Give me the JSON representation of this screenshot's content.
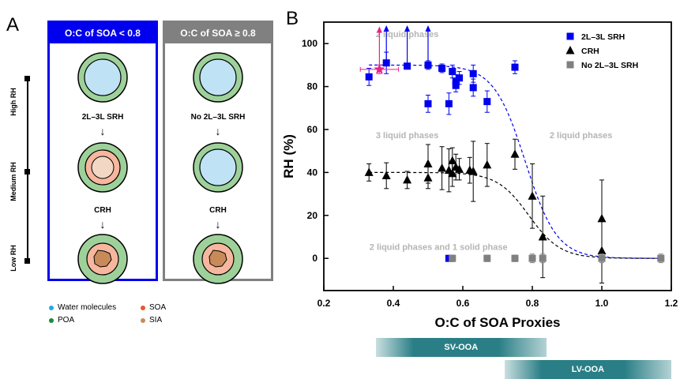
{
  "panel_a": {
    "letter": "A",
    "left_header": "O:C of SOA < 0.8",
    "right_header": "O:C of SOA ≥ 0.8",
    "left_label_1": "2L–3L SRH",
    "left_label_2": "CRH",
    "right_label_1": "No 2L–3L SRH",
    "right_label_2": "CRH",
    "rh_axis": [
      "High RH",
      "Medium RH",
      "Low RH"
    ],
    "legend": [
      {
        "label": "Water molecules",
        "color": "#29a8e0"
      },
      {
        "label": "SOA",
        "color": "#e8582a"
      },
      {
        "label": "POA",
        "color": "#1a8a3a"
      },
      {
        "label": "SIA",
        "color": "#c98a5a"
      }
    ],
    "colors": {
      "left_box": "#0000ee",
      "right_box": "#808080"
    }
  },
  "panel_b": {
    "letter": "B"
  },
  "chart_data": {
    "type": "scatter",
    "xlabel": "O:C of SOA Proxies",
    "ylabel": "RH (%)",
    "xlim": [
      0.2,
      1.2
    ],
    "ylim": [
      -15,
      110
    ],
    "xticks": [
      0.2,
      0.4,
      0.6,
      0.8,
      1.0,
      1.2
    ],
    "xtick_labels": [
      "0.2",
      "0.4",
      "0.6",
      "0.8",
      "1.0",
      "1.2"
    ],
    "yticks": [
      0,
      20,
      40,
      60,
      80,
      100
    ],
    "ytick_labels": [
      "0",
      "20",
      "40",
      "60",
      "80",
      "100"
    ],
    "legend_position": "top-right",
    "annotations": [
      {
        "text": "2 liquid phases",
        "x": 0.44,
        "y": 103
      },
      {
        "text": "3 liquid phases",
        "x": 0.44,
        "y": 56
      },
      {
        "text": "2 liquid phases",
        "x": 0.94,
        "y": 56
      },
      {
        "text": "2 liquid phases and 1 solid phase",
        "x": 0.53,
        "y": 4
      }
    ],
    "series": [
      {
        "name": "2L–3L SRH",
        "color": "#0000ee",
        "marker": "square",
        "points": [
          {
            "x": 0.33,
            "y": 84.5,
            "err": 4
          },
          {
            "x": 0.38,
            "y": 91,
            "err": 5
          },
          {
            "x": 0.44,
            "y": 89.5,
            "err": 1
          },
          {
            "x": 0.5,
            "y": 90,
            "err": 2
          },
          {
            "x": 0.5,
            "y": 72,
            "err": 4
          },
          {
            "x": 0.54,
            "y": 88.5,
            "err": 2
          },
          {
            "x": 0.56,
            "y": 72,
            "err": 5
          },
          {
            "x": 0.57,
            "y": 87,
            "err": 3
          },
          {
            "x": 0.58,
            "y": 80.5,
            "err": 3
          },
          {
            "x": 0.58,
            "y": 82.5,
            "err": 3
          },
          {
            "x": 0.59,
            "y": 84,
            "err": 3
          },
          {
            "x": 0.63,
            "y": 86,
            "err": 4
          },
          {
            "x": 0.63,
            "y": 79.5,
            "err": 4
          },
          {
            "x": 0.67,
            "y": 73,
            "err": 5
          },
          {
            "x": 0.75,
            "y": 89,
            "err": 3
          },
          {
            "x": 0.56,
            "y": 0,
            "err": 1
          }
        ],
        "lower_limits": [
          {
            "x": 0.38,
            "y": 91
          },
          {
            "x": 0.44,
            "y": 89.5
          },
          {
            "x": 0.5,
            "y": 90
          }
        ]
      },
      {
        "name": "CRH",
        "color": "#000000",
        "marker": "triangle",
        "points": [
          {
            "x": 0.33,
            "y": 40,
            "err": 4
          },
          {
            "x": 0.38,
            "y": 38.5,
            "err": 6
          },
          {
            "x": 0.44,
            "y": 36.5,
            "err": 4
          },
          {
            "x": 0.5,
            "y": 44,
            "err": 9
          },
          {
            "x": 0.5,
            "y": 37.5,
            "err": 5
          },
          {
            "x": 0.54,
            "y": 42,
            "err": 10
          },
          {
            "x": 0.56,
            "y": 41,
            "err": 10
          },
          {
            "x": 0.57,
            "y": 45.5,
            "err": 6
          },
          {
            "x": 0.57,
            "y": 39.5,
            "err": 6
          },
          {
            "x": 0.58,
            "y": 42.5,
            "err": 6
          },
          {
            "x": 0.59,
            "y": 41.5,
            "err": 5
          },
          {
            "x": 0.62,
            "y": 41,
            "err": 6
          },
          {
            "x": 0.63,
            "y": 40.5,
            "err": 14
          },
          {
            "x": 0.67,
            "y": 43.5,
            "err": 10
          },
          {
            "x": 0.75,
            "y": 48.5,
            "err": 7
          },
          {
            "x": 0.8,
            "y": 29,
            "err": 15
          },
          {
            "x": 0.83,
            "y": 10,
            "err": 19
          },
          {
            "x": 1.0,
            "y": 18.5,
            "err": 18
          },
          {
            "x": 1.0,
            "y": 3.5,
            "err": 15
          }
        ]
      },
      {
        "name": "No 2L–3L SRH",
        "color": "#808080",
        "marker": "square",
        "points": [
          {
            "x": 0.57,
            "y": 0,
            "err": 1.5
          },
          {
            "x": 0.67,
            "y": 0,
            "err": 1.5
          },
          {
            "x": 0.75,
            "y": 0,
            "err": 1.5
          },
          {
            "x": 0.8,
            "y": 0,
            "err": 2
          },
          {
            "x": 0.83,
            "y": 0,
            "err": 2
          },
          {
            "x": 1.0,
            "y": 0,
            "err": 2
          },
          {
            "x": 1.17,
            "y": 0,
            "err": 2
          }
        ]
      },
      {
        "name": "",
        "color": "#ee1e8c",
        "marker": "star",
        "points": [
          {
            "x": 0.36,
            "y": 88,
            "xerr": 0.055,
            "err": 2
          }
        ],
        "lower_limits": [
          {
            "x": 0.36,
            "y": 88
          }
        ]
      }
    ],
    "fit_curves": [
      {
        "color": "#0000ee",
        "style": "dashed",
        "upper": 90,
        "lower": 0,
        "x0": 0.78,
        "k": 22
      },
      {
        "color": "#000000",
        "style": "dashed",
        "upper": 40,
        "lower": 0,
        "x0": 0.79,
        "k": 22
      }
    ],
    "bands": [
      {
        "label": "SV-OOA",
        "x_start": 0.35,
        "x_end": 0.84,
        "color": "#2a7f86"
      },
      {
        "label": "LV-OOA",
        "x_start": 0.72,
        "x_end": 1.2,
        "color": "#2a7f86"
      }
    ]
  }
}
